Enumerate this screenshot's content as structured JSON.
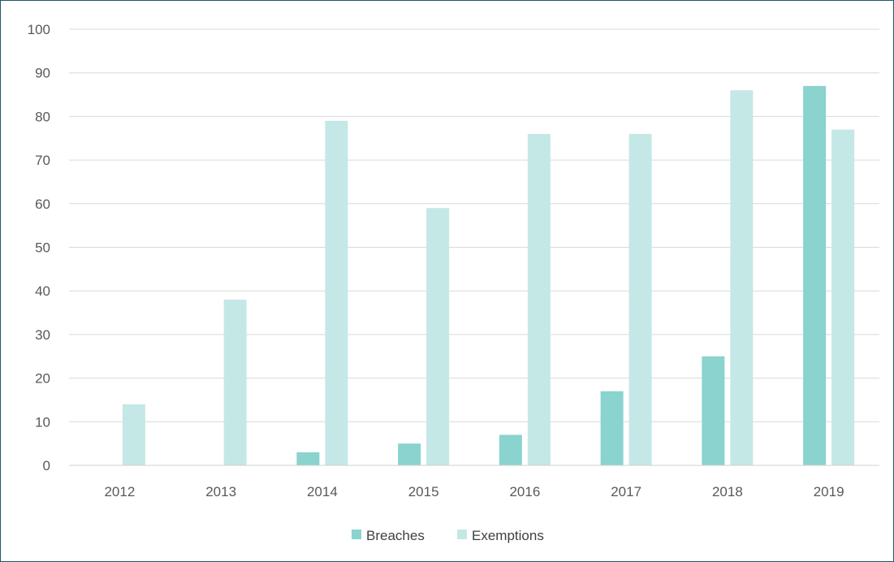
{
  "chart_data": {
    "type": "bar",
    "categories": [
      "2012",
      "2013",
      "2014",
      "2015",
      "2016",
      "2017",
      "2018",
      "2019"
    ],
    "series": [
      {
        "name": "Breaches",
        "values": [
          0,
          0,
          3,
          5,
          7,
          17,
          25,
          87
        ],
        "color": "#8ad3cf"
      },
      {
        "name": "Exemptions",
        "values": [
          14,
          38,
          79,
          59,
          76,
          76,
          86,
          77
        ],
        "color": "#c4e8e6"
      }
    ],
    "title": "",
    "xlabel": "",
    "ylabel": "",
    "ylim": [
      0,
      100
    ],
    "yticks": [
      "0",
      "10",
      "20",
      "30",
      "40",
      "50",
      "60",
      "70",
      "80",
      "90",
      "100"
    ],
    "grid": true,
    "legend": "bottom-center"
  }
}
